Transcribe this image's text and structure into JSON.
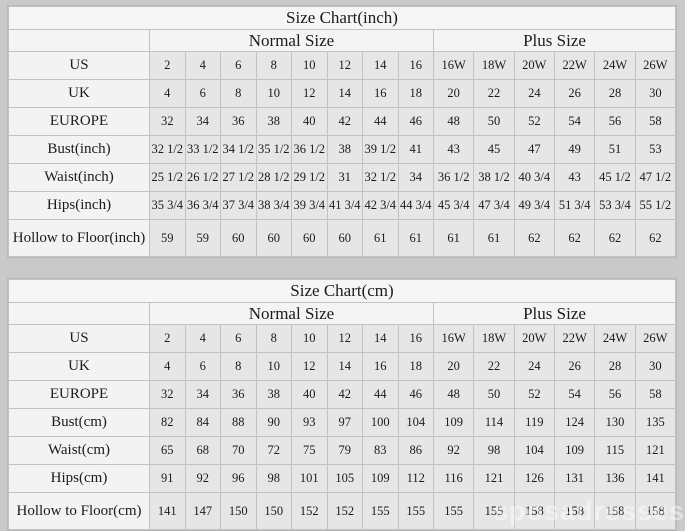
{
  "page": {
    "background": "#c9c9c9",
    "grid_line_color": "#c2c2c2",
    "data_cell_color": "#e6e6e6",
    "label_cell_color": "#f3f3f3",
    "header_cell_color": "#f5f5f5",
    "watermark": "sposadresses"
  },
  "chart_data": [
    {
      "type": "table",
      "title": "Size Chart(inch)",
      "column_groups": [
        {
          "label": "Normal Size",
          "span": 8
        },
        {
          "label": "Plus Size",
          "span": 6
        }
      ],
      "rows": [
        {
          "label": "US",
          "values": [
            "2",
            "4",
            "6",
            "8",
            "10",
            "12",
            "14",
            "16",
            "16W",
            "18W",
            "20W",
            "22W",
            "24W",
            "26W"
          ]
        },
        {
          "label": "UK",
          "values": [
            "4",
            "6",
            "8",
            "10",
            "12",
            "14",
            "16",
            "18",
            "20",
            "22",
            "24",
            "26",
            "28",
            "30"
          ]
        },
        {
          "label": "EUROPE",
          "values": [
            "32",
            "34",
            "36",
            "38",
            "40",
            "42",
            "44",
            "46",
            "48",
            "50",
            "52",
            "54",
            "56",
            "58"
          ]
        },
        {
          "label": "Bust(inch)",
          "values": [
            "32 1/2",
            "33 1/2",
            "34 1/2",
            "35 1/2",
            "36 1/2",
            "38",
            "39 1/2",
            "41",
            "43",
            "45",
            "47",
            "49",
            "51",
            "53"
          ]
        },
        {
          "label": "Waist(inch)",
          "values": [
            "25 1/2",
            "26 1/2",
            "27 1/2",
            "28 1/2",
            "29 1/2",
            "31",
            "32 1/2",
            "34",
            "36 1/2",
            "38 1/2",
            "40 3/4",
            "43",
            "45 1/2",
            "47 1/2"
          ]
        },
        {
          "label": "Hips(inch)",
          "values": [
            "35 3/4",
            "36 3/4",
            "37 3/4",
            "38 3/4",
            "39 3/4",
            "41 3/4",
            "42 3/4",
            "44 3/4",
            "45 3/4",
            "47 3/4",
            "49 3/4",
            "51 3/4",
            "53 3/4",
            "55 1/2"
          ]
        },
        {
          "label": "Hollow to Floor(inch)",
          "values": [
            "59",
            "59",
            "60",
            "60",
            "60",
            "60",
            "61",
            "61",
            "61",
            "61",
            "62",
            "62",
            "62",
            "62"
          ]
        }
      ]
    },
    {
      "type": "table",
      "title": "Size Chart(cm)",
      "column_groups": [
        {
          "label": "Normal Size",
          "span": 8
        },
        {
          "label": "Plus Size",
          "span": 6
        }
      ],
      "rows": [
        {
          "label": "US",
          "values": [
            "2",
            "4",
            "6",
            "8",
            "10",
            "12",
            "14",
            "16",
            "16W",
            "18W",
            "20W",
            "22W",
            "24W",
            "26W"
          ]
        },
        {
          "label": "UK",
          "values": [
            "4",
            "6",
            "8",
            "10",
            "12",
            "14",
            "16",
            "18",
            "20",
            "22",
            "24",
            "26",
            "28",
            "30"
          ]
        },
        {
          "label": "EUROPE",
          "values": [
            "32",
            "34",
            "36",
            "38",
            "40",
            "42",
            "44",
            "46",
            "48",
            "50",
            "52",
            "54",
            "56",
            "58"
          ]
        },
        {
          "label": "Bust(cm)",
          "values": [
            "82",
            "84",
            "88",
            "90",
            "93",
            "97",
            "100",
            "104",
            "109",
            "114",
            "119",
            "124",
            "130",
            "135"
          ]
        },
        {
          "label": "Waist(cm)",
          "values": [
            "65",
            "68",
            "70",
            "72",
            "75",
            "79",
            "83",
            "86",
            "92",
            "98",
            "104",
            "109",
            "115",
            "121"
          ]
        },
        {
          "label": "Hips(cm)",
          "values": [
            "91",
            "92",
            "96",
            "98",
            "101",
            "105",
            "109",
            "112",
            "116",
            "121",
            "126",
            "131",
            "136",
            "141"
          ]
        },
        {
          "label": "Hollow to Floor(cm)",
          "values": [
            "141",
            "147",
            "150",
            "150",
            "152",
            "152",
            "155",
            "155",
            "155",
            "155",
            "158",
            "158",
            "158",
            "158"
          ]
        }
      ]
    }
  ]
}
